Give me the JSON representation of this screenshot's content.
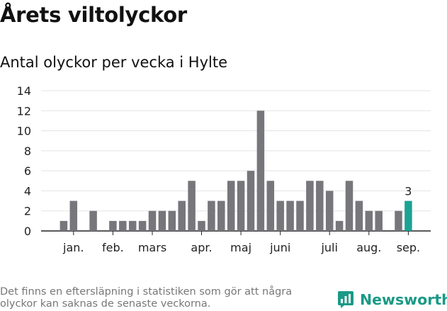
{
  "header": {
    "title": "Årets viltolyckor",
    "subtitle": "Antal olyckor per vecka i Hylte"
  },
  "footer": {
    "note": "Det finns en eftersläpning i statistiken som gör att några olyckor kan saknas de senaste veckorna.",
    "brand": "Newsworthy"
  },
  "colors": {
    "bar": "#76767b",
    "highlight": "#1aa394",
    "grid": "#e3e3e3",
    "brand": "#1a9a86"
  },
  "chart_data": {
    "type": "bar",
    "title": "Antal olyckor per vecka i Hylte",
    "xlabel": "",
    "ylabel": "",
    "ylim": [
      0,
      14
    ],
    "yticks": [
      0,
      2,
      4,
      6,
      8,
      10,
      12,
      14
    ],
    "grid": true,
    "x": [
      1,
      2,
      3,
      4,
      5,
      6,
      7,
      8,
      9,
      10,
      11,
      12,
      13,
      14,
      15,
      16,
      17,
      18,
      19,
      20,
      21,
      22,
      23,
      24,
      25,
      26,
      27,
      28,
      29,
      30,
      31,
      32,
      33,
      34,
      35,
      36,
      37,
      38
    ],
    "values": [
      0,
      1,
      3,
      0,
      2,
      0,
      1,
      1,
      1,
      1,
      2,
      2,
      2,
      3,
      5,
      1,
      3,
      3,
      5,
      5,
      6,
      12,
      5,
      3,
      3,
      3,
      5,
      5,
      4,
      1,
      5,
      3,
      2,
      2,
      0,
      2,
      3,
      0
    ],
    "highlight": {
      "x": 37,
      "value": 3,
      "label": "3"
    },
    "month_labels": [
      {
        "label": "jan.",
        "x": 3
      },
      {
        "label": "feb.",
        "x": 7
      },
      {
        "label": "mars",
        "x": 11
      },
      {
        "label": "apr.",
        "x": 16
      },
      {
        "label": "maj",
        "x": 20
      },
      {
        "label": "juni",
        "x": 24
      },
      {
        "label": "juli",
        "x": 29
      },
      {
        "label": "aug.",
        "x": 33
      },
      {
        "label": "sep.",
        "x": 37
      }
    ]
  }
}
